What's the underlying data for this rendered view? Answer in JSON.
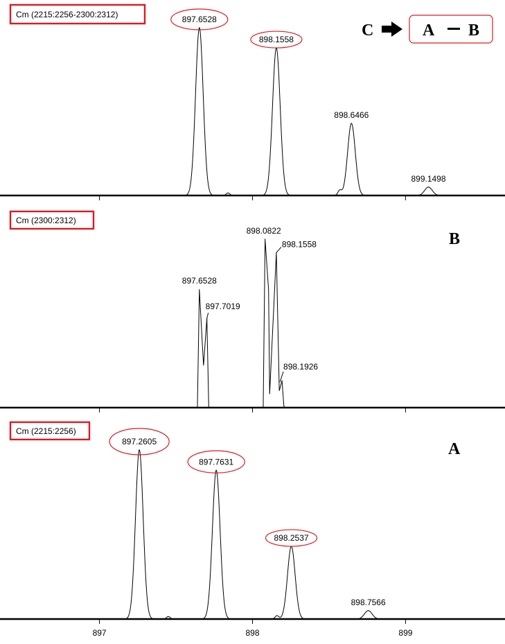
{
  "header": {
    "c_letter": "C",
    "arrow": "arrow-right-icon",
    "formula_a": "A",
    "formula_b": "B",
    "accent_color": "#e0191f"
  },
  "chart_data": [
    {
      "type": "line",
      "name_label": "Cm (2215:2256-2300:2312)",
      "panel_letter": "",
      "xlim": [
        896.35,
        899.65
      ],
      "ticks": [
        "897",
        "898",
        "899"
      ],
      "highlighted": [
        "897.6528",
        "898.1558"
      ],
      "peaks": [
        {
          "x": 897.6528,
          "y": 100,
          "label": "897.6528"
        },
        {
          "x": 898.1558,
          "y": 88,
          "label": "898.1558"
        },
        {
          "x": 898.6466,
          "y": 43,
          "label": "898.6466"
        },
        {
          "x": 899.1498,
          "y": 5,
          "label": "899.1498"
        }
      ],
      "minor": [
        {
          "x": 897.84,
          "y": 1.5
        },
        {
          "x": 898.57,
          "y": 3
        }
      ],
      "ymax": 100
    },
    {
      "type": "line",
      "name_label": "Cm (2300:2312)",
      "panel_letter": "B",
      "xlim": [
        896.35,
        899.65
      ],
      "ticks": [
        "897",
        "898",
        "899"
      ],
      "highlighted": [],
      "peaks": [
        {
          "x": 897.6528,
          "y": 70,
          "label": "897.6528"
        },
        {
          "x": 897.7019,
          "y": 53,
          "label": "897.7019"
        },
        {
          "x": 898.0822,
          "y": 100,
          "label": "898.0822"
        },
        {
          "x": 898.1558,
          "y": 92,
          "label": "898.1558"
        },
        {
          "x": 898.1926,
          "y": 16,
          "label": "898.1926"
        }
      ],
      "minor": [],
      "ymax": 100
    },
    {
      "type": "line",
      "name_label": "Cm (2215:2256)",
      "panel_letter": "A",
      "xlim": [
        896.35,
        899.65
      ],
      "ticks": [
        "897",
        "898",
        "899"
      ],
      "tick_labels_visible": true,
      "highlighted": [
        "897.2605",
        "897.7631",
        "898.2537"
      ],
      "peaks": [
        {
          "x": 897.2605,
          "y": 100,
          "label": "897.2605"
        },
        {
          "x": 897.7631,
          "y": 88,
          "label": "897.7631"
        },
        {
          "x": 898.2537,
          "y": 43,
          "label": "898.2537"
        },
        {
          "x": 898.7566,
          "y": 5,
          "label": "898.7566"
        }
      ],
      "minor": [
        {
          "x": 897.45,
          "y": 1.5
        },
        {
          "x": 898.16,
          "y": 2
        }
      ],
      "ymax": 100
    }
  ]
}
